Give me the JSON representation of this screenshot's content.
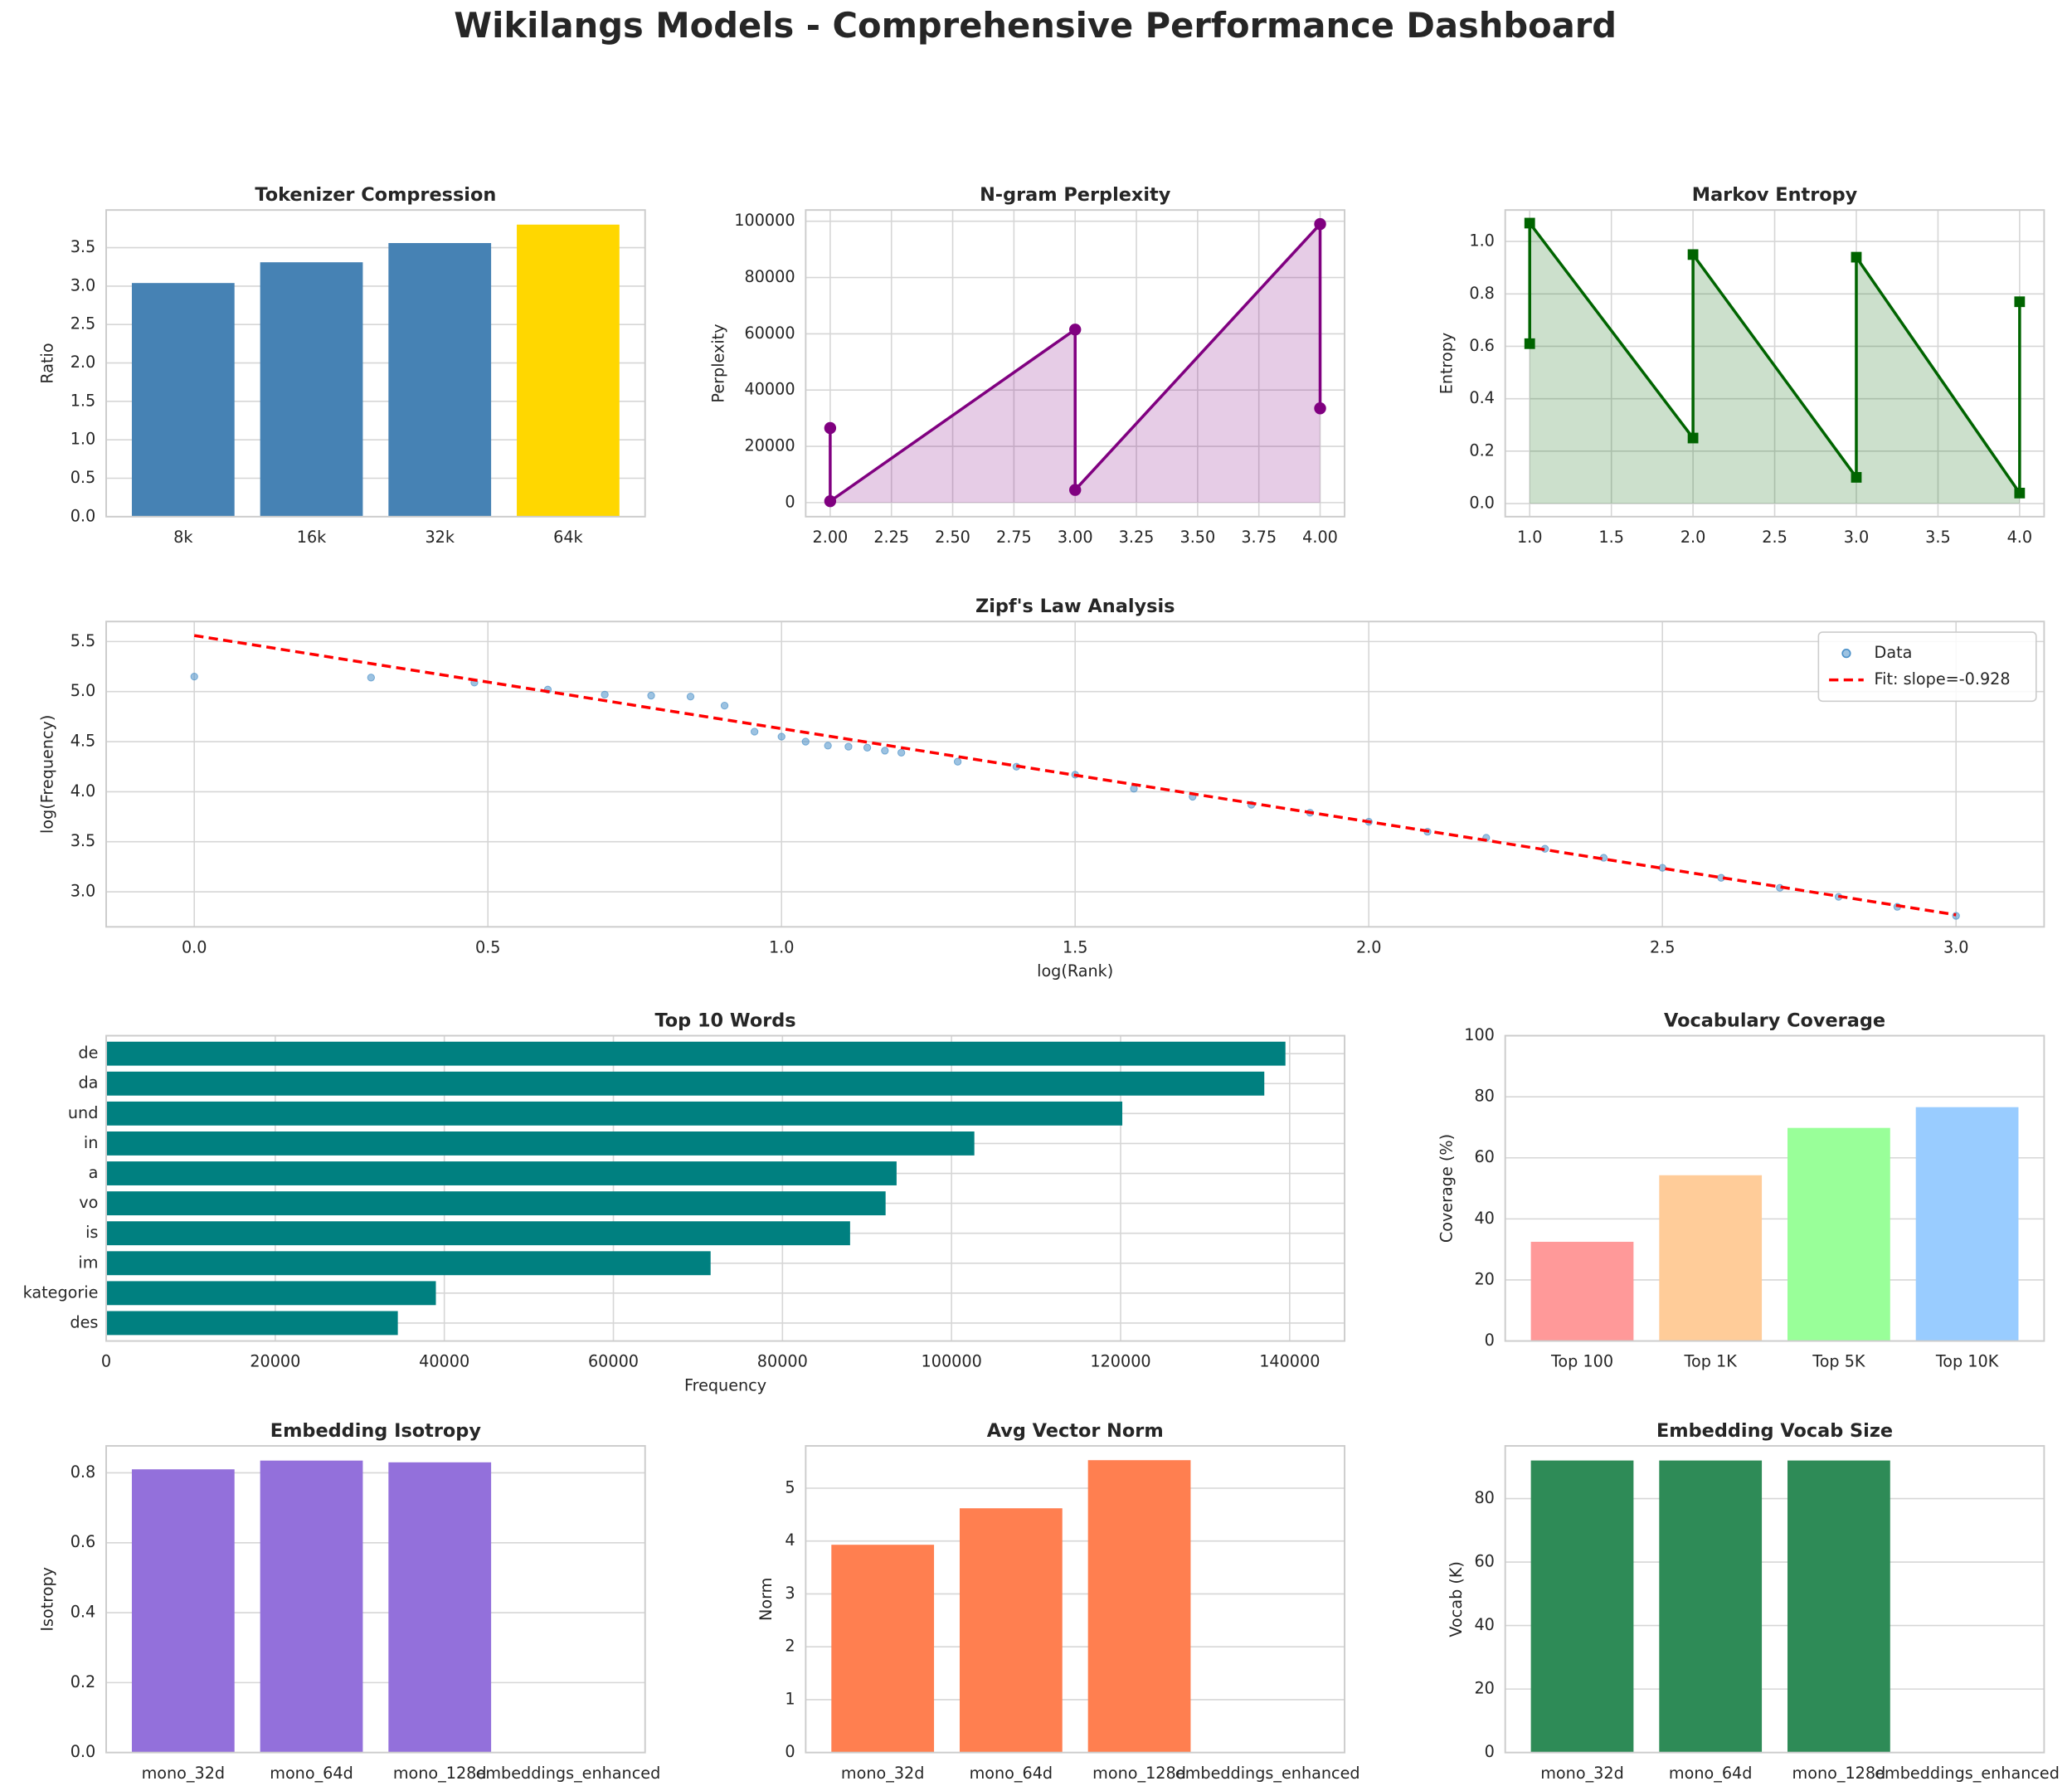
{
  "title": "Wikilangs Models - Comprehensive Performance Dashboard",
  "chart_data": [
    {
      "type": "bar",
      "title": "Tokenizer Compression",
      "ylabel": "Ratio",
      "categories": [
        "8k",
        "16k",
        "32k",
        "64k"
      ],
      "values": [
        3.04,
        3.31,
        3.56,
        3.8
      ],
      "colors": [
        "#4682b4",
        "#4682b4",
        "#4682b4",
        "#ffd700"
      ],
      "ylim": [
        0,
        3.99
      ],
      "yticks": [
        {
          "value": 0,
          "label": "0.0"
        },
        {
          "value": 0.5,
          "label": "0.5"
        },
        {
          "value": 1,
          "label": "1.0"
        },
        {
          "value": 1.5,
          "label": "1.5"
        },
        {
          "value": 2,
          "label": "2.0"
        },
        {
          "value": 2.5,
          "label": "2.5"
        },
        {
          "value": 3,
          "label": "3.0"
        },
        {
          "value": 3.5,
          "label": "3.5"
        }
      ],
      "grid": true
    },
    {
      "type": "line",
      "title": "N-gram Perplexity",
      "ylabel": "Perplexity",
      "x": [
        2,
        2,
        3,
        3,
        4,
        4
      ],
      "values": [
        26500,
        500,
        61500,
        4500,
        99000,
        33500
      ],
      "color": "#800080",
      "marker": "o",
      "fill": true,
      "xlim": [
        1.9,
        4.1
      ],
      "xticks": [
        {
          "value": 2,
          "label": "2.00"
        },
        {
          "value": 2.25,
          "label": "2.25"
        },
        {
          "value": 2.5,
          "label": "2.50"
        },
        {
          "value": 2.75,
          "label": "2.75"
        },
        {
          "value": 3,
          "label": "3.00"
        },
        {
          "value": 3.25,
          "label": "3.25"
        },
        {
          "value": 3.5,
          "label": "3.50"
        },
        {
          "value": 3.75,
          "label": "3.75"
        },
        {
          "value": 4,
          "label": "4.00"
        }
      ],
      "ylim": [
        -5000,
        104000
      ],
      "yticks": [
        0,
        20000,
        40000,
        60000,
        80000,
        100000
      ],
      "grid": true
    },
    {
      "type": "line",
      "title": "Markov Entropy",
      "ylabel": "Entropy",
      "x": [
        1,
        1,
        2,
        2,
        3,
        3,
        4,
        4
      ],
      "values": [
        0.61,
        1.07,
        0.25,
        0.95,
        0.1,
        0.94,
        0.04,
        0.77
      ],
      "color": "#006400",
      "marker": "s",
      "fill": true,
      "xlim": [
        0.85,
        4.15
      ],
      "xticks": [
        {
          "value": 1,
          "label": "1.0"
        },
        1.5,
        {
          "value": 2,
          "label": "2.0"
        },
        2.5,
        {
          "value": 3,
          "label": "3.0"
        },
        3.5,
        {
          "value": 4,
          "label": "4.0"
        }
      ],
      "ylim": [
        -0.05,
        1.12
      ],
      "yticks": [
        {
          "value": 0,
          "label": "0.0"
        },
        0.2,
        0.4,
        0.6,
        0.8,
        {
          "value": 1,
          "label": "1.0"
        }
      ],
      "grid": true
    },
    {
      "type": "scatter",
      "title": "Zipf's Law Analysis",
      "xlabel": "log(Rank)",
      "ylabel": "log(Frequency)",
      "legend": "upper right",
      "series": [
        {
          "name": "Data",
          "color": "#4a90c8",
          "marker": "o",
          "x": [
            0,
            0.301,
            0.477,
            0.602,
            0.699,
            0.778,
            0.845,
            0.903,
            0.954,
            1.0,
            1.041,
            1.079,
            1.114,
            1.146,
            1.176,
            1.204,
            1.3,
            1.4,
            1.5,
            1.6,
            1.7,
            1.8,
            1.9,
            2.0,
            2.1,
            2.2,
            2.3,
            2.4,
            2.5,
            2.6,
            2.7,
            2.8,
            2.9,
            3.0
          ],
          "values": [
            5.15,
            5.14,
            5.09,
            5.02,
            4.97,
            4.96,
            4.95,
            4.86,
            4.6,
            4.55,
            4.5,
            4.46,
            4.45,
            4.44,
            4.41,
            4.39,
            4.3,
            4.25,
            4.17,
            4.03,
            3.95,
            3.87,
            3.79,
            3.7,
            3.6,
            3.54,
            3.43,
            3.34,
            3.24,
            3.14,
            3.04,
            2.95,
            2.85,
            2.76
          ]
        },
        {
          "name": "Fit: slope=-0.928",
          "color": "#ff0000",
          "linestyle": "dashed",
          "x": [
            0,
            3
          ],
          "values": [
            5.56,
            2.77
          ]
        }
      ],
      "xlim": [
        -0.15,
        3.15
      ],
      "xticks": [
        {
          "value": 0,
          "label": "0.0"
        },
        0.5,
        {
          "value": 1,
          "label": "1.0"
        },
        1.5,
        {
          "value": 2,
          "label": "2.0"
        },
        2.5,
        {
          "value": 3,
          "label": "3.0"
        }
      ],
      "ylim": [
        2.65,
        5.7
      ],
      "yticks": [
        {
          "value": 3,
          "label": "3.0"
        },
        3.5,
        {
          "value": 4,
          "label": "4.0"
        },
        4.5,
        {
          "value": 5,
          "label": "5.0"
        },
        5.5
      ],
      "grid": true
    },
    {
      "type": "barh",
      "title": "Top 10 Words",
      "xlabel": "Frequency",
      "categories": [
        "de",
        "da",
        "und",
        "in",
        "a",
        "vo",
        "is",
        "im",
        "kategorie",
        "des"
      ],
      "values": [
        139500,
        137000,
        120200,
        102700,
        93500,
        92200,
        88000,
        71500,
        39000,
        34500
      ],
      "color": "#008080",
      "xlim": [
        0,
        146500
      ],
      "xticks": [
        0,
        20000,
        40000,
        60000,
        80000,
        100000,
        120000,
        140000
      ],
      "grid": true
    },
    {
      "type": "bar",
      "title": "Vocabulary Coverage",
      "ylabel": "Coverage (%)",
      "categories": [
        "Top 100",
        "Top 1K",
        "Top 5K",
        "Top 10K"
      ],
      "values": [
        32.5,
        54.3,
        69.8,
        76.6
      ],
      "colors": [
        "#ff9999",
        "#ffcc99",
        "#99ff99",
        "#99ccff"
      ],
      "ylim": [
        0,
        100
      ],
      "yticks": [
        0,
        20,
        40,
        60,
        80,
        100
      ],
      "grid": true
    },
    {
      "type": "bar",
      "title": "Embedding Isotropy",
      "ylabel": "Isotropy",
      "categories": [
        "mono_32d",
        "mono_64d",
        "mono_128d",
        "embeddings_enhanced"
      ],
      "values": [
        0.81,
        0.835,
        0.83,
        null
      ],
      "color": "#9370db",
      "ylim": [
        0,
        0.877
      ],
      "yticks": [
        {
          "value": 0,
          "label": "0.0"
        },
        0.2,
        0.4,
        0.6,
        0.8
      ],
      "grid": true
    },
    {
      "type": "bar",
      "title": "Avg Vector Norm",
      "ylabel": "Norm",
      "categories": [
        "mono_32d",
        "mono_64d",
        "mono_128d",
        "embeddings_enhanced"
      ],
      "values": [
        3.93,
        4.62,
        5.53,
        null
      ],
      "color": "#ff7f50",
      "ylim": [
        0,
        5.8
      ],
      "yticks": [
        0,
        1,
        2,
        3,
        4,
        5
      ],
      "grid": true
    },
    {
      "type": "bar",
      "title": "Embedding Vocab Size",
      "ylabel": "Vocab (K)",
      "categories": [
        "mono_32d",
        "mono_64d",
        "mono_128d",
        "embeddings_enhanced"
      ],
      "values": [
        92,
        92,
        92,
        null
      ],
      "color": "#2e8b57",
      "ylim": [
        0,
        96.6
      ],
      "yticks": [
        0,
        20,
        40,
        60,
        80
      ],
      "grid": true
    }
  ]
}
